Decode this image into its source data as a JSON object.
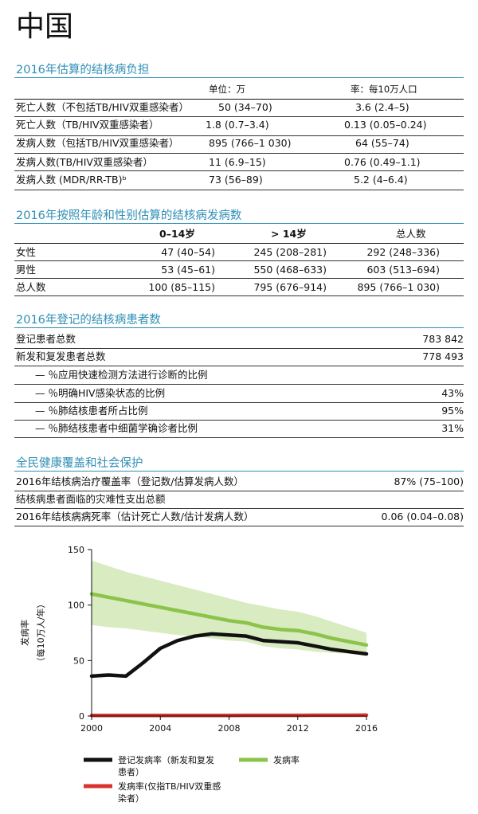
{
  "page_title": "中国",
  "burden": {
    "heading": "2016年估算的结核病负担",
    "col_number": "单位：万",
    "col_rate": "率：每10万人口",
    "rows": [
      {
        "label": "死亡人数（不包括TB/HIV双重感染者）",
        "number": "50 (34–70)",
        "rate": "3.6 (2.4–5)"
      },
      {
        "label": "死亡人数（TB/HIV双重感染者）",
        "number": "1.8 (0.7–3.4)",
        "rate": "0.13 (0.05–0.24)"
      },
      {
        "label": "发病人数（包括TB/HIV双重感染者）",
        "number": "895 (766–1 030)",
        "rate": "64 (55–74)"
      },
      {
        "label": "发病人数(TB/HIV双重感染者）",
        "number": "11 (6.9–15)",
        "rate": "0.76 (0.49–1.1)"
      },
      {
        "label": "发病人数 (MDR/RR-TB)ᵇ",
        "number": "73 (56–89)",
        "rate": "5.2 (4–6.4)"
      }
    ]
  },
  "incidence_by_age_sex": {
    "heading": "2016年按照年龄和性别估算的结核病发病数",
    "col_a": "0–14岁",
    "col_b": "> 14岁",
    "col_total": "总人数",
    "rows": [
      {
        "label": "女性",
        "a": "47 (40–54)",
        "b": "245 (208–281)",
        "total": "292 (248–336)"
      },
      {
        "label": "男性",
        "a": "53 (45–61)",
        "b": "550 (468–633)",
        "total": "603 (513–694)"
      },
      {
        "label": "总人数",
        "a": "100 (85–115)",
        "b": "795 (676–914)",
        "total": "895 (766–1 030)"
      }
    ]
  },
  "notified": {
    "heading": "2016年登记的结核病患者数",
    "rows": [
      {
        "label": "登记患者总数",
        "value": "783 842"
      },
      {
        "label": "新发和复发患者总数",
        "value": "778 493"
      },
      {
        "label": "— ％应用快速检测方法进行诊断的比例",
        "value": ""
      },
      {
        "label": "— ％明确HIV感染状态的比例",
        "value": "43%"
      },
      {
        "label": "— ％肺结核患者所占比例",
        "value": "95%"
      },
      {
        "label": "— ％肺结核患者中细菌学确诊者比例",
        "value": "31%"
      }
    ]
  },
  "uhc": {
    "heading": "全民健康覆盖和社会保护",
    "rows": [
      {
        "label": "2016年结核病治疗覆盖率（登记数/估算发病人数）",
        "value": "87% (75–100)"
      },
      {
        "label": "结核病患者面临的灾难性支出总额",
        "value": ""
      },
      {
        "label": "2016年结核病病死率（估计死亡人数/估计发病人数）",
        "value": "0.06 (0.04–0.08)"
      }
    ]
  },
  "chart_data": {
    "type": "line",
    "ylabel_line1": "发病率",
    "ylabel_line2": "（每10万人/年）",
    "ylim": [
      0,
      150
    ],
    "xlim": [
      2000,
      2016
    ],
    "yticks": [
      "0",
      "50",
      "100",
      "150"
    ],
    "xticks": [
      "2000",
      "2004",
      "2008",
      "2012",
      "2016"
    ],
    "x": [
      2000,
      2001,
      2002,
      2003,
      2004,
      2005,
      2006,
      2007,
      2008,
      2009,
      2010,
      2011,
      2012,
      2013,
      2014,
      2015,
      2016
    ],
    "band": {
      "upper": [
        140,
        135,
        130,
        126,
        122,
        118,
        114,
        110,
        106,
        102,
        99,
        96,
        94,
        90,
        85,
        80,
        75
      ],
      "lower": [
        82,
        80,
        79,
        77,
        75,
        73,
        72,
        70,
        68,
        67,
        63,
        61,
        60,
        58,
        57,
        56,
        55
      ]
    },
    "series": [
      {
        "name": "发病率",
        "color": "#8cc34a",
        "values": [
          110,
          107,
          104,
          101,
          98,
          95,
          92,
          89,
          86,
          84,
          80,
          78,
          77,
          74,
          70,
          67,
          64
        ]
      },
      {
        "name": "登记发病率（新发和复发患者）",
        "color": "#111111",
        "values": [
          36,
          37,
          36,
          48,
          61,
          68,
          72,
          74,
          73,
          72,
          68,
          67,
          66,
          63,
          60,
          58,
          56
        ]
      },
      {
        "name": "发病率(仅指TB/HIV双重感染者)",
        "color": "#d9322c",
        "values": [
          0.5,
          0.5,
          0.5,
          0.5,
          0.5,
          0.5,
          0.5,
          0.5,
          0.5,
          0.6,
          0.6,
          0.6,
          0.6,
          0.7,
          0.7,
          0.7,
          0.8
        ]
      }
    ],
    "legend": [
      {
        "label": "登记发病率（新发和复发",
        "label2": "患者）",
        "color": "#111111"
      },
      {
        "label": "发病率",
        "label2": "",
        "color": "#8cc34a"
      },
      {
        "label": "发病率(仅指TB/HIV双重感",
        "label2": "染者）",
        "color": "#d9322c"
      }
    ]
  }
}
